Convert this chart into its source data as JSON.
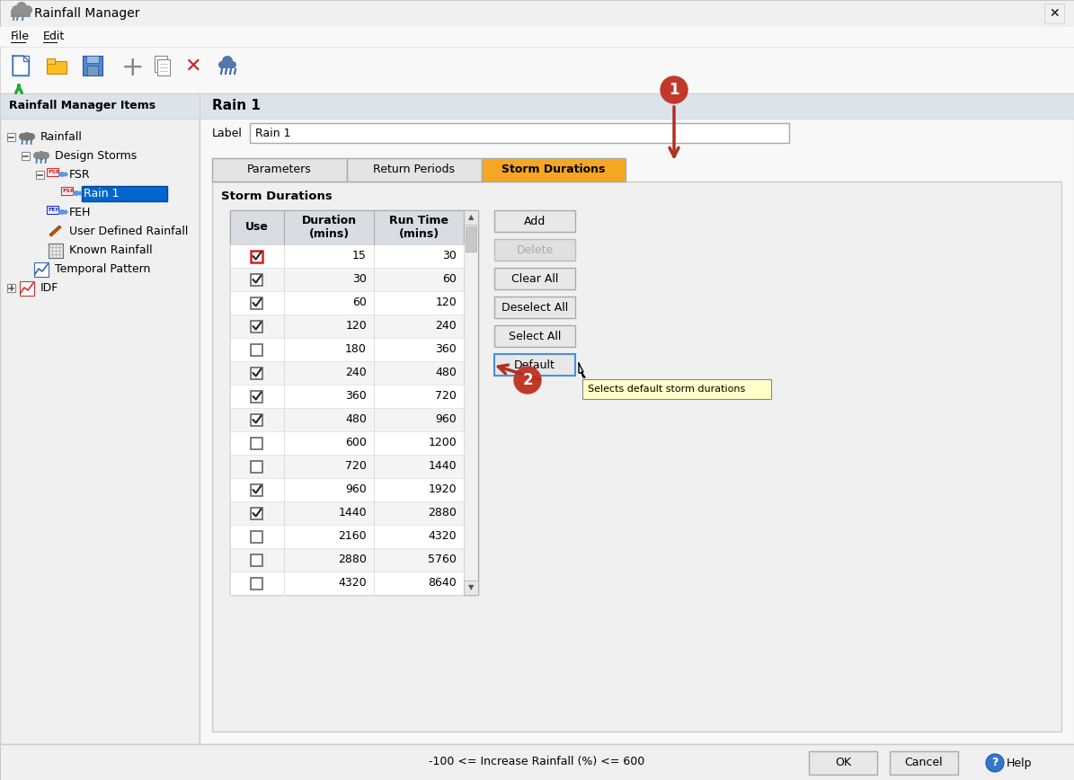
{
  "title": "Rainfall Manager",
  "window_bg": "#f0f0f0",
  "left_panel_title": "Rainfall Manager Items",
  "right_panel_title": "Rain 1",
  "label_text": "Rain 1",
  "tabs": [
    "Parameters",
    "Return Periods",
    "Storm Durations"
  ],
  "active_tab": 2,
  "active_tab_color": "#f5a623",
  "section_title": "Storm Durations",
  "table_headers": [
    "Use",
    "Duration\n(mins)",
    "Run Time\n(mins)"
  ],
  "table_data": [
    {
      "checked": true,
      "duration": 15,
      "runtime": 30,
      "first_row": true
    },
    {
      "checked": true,
      "duration": 30,
      "runtime": 60
    },
    {
      "checked": true,
      "duration": 60,
      "runtime": 120
    },
    {
      "checked": true,
      "duration": 120,
      "runtime": 240
    },
    {
      "checked": false,
      "duration": 180,
      "runtime": 360
    },
    {
      "checked": true,
      "duration": 240,
      "runtime": 480
    },
    {
      "checked": true,
      "duration": 360,
      "runtime": 720
    },
    {
      "checked": true,
      "duration": 480,
      "runtime": 960
    },
    {
      "checked": false,
      "duration": 600,
      "runtime": 1200
    },
    {
      "checked": false,
      "duration": 720,
      "runtime": 1440
    },
    {
      "checked": true,
      "duration": 960,
      "runtime": 1920
    },
    {
      "checked": true,
      "duration": 1440,
      "runtime": 2880
    },
    {
      "checked": false,
      "duration": 2160,
      "runtime": 4320
    },
    {
      "checked": false,
      "duration": 2880,
      "runtime": 5760
    },
    {
      "checked": false,
      "duration": 4320,
      "runtime": 8640
    }
  ],
  "buttons": [
    "Add",
    "Delete",
    "Clear All",
    "Deselect All",
    "Select All",
    "Default"
  ],
  "button_disabled": [
    false,
    true,
    false,
    false,
    false,
    false
  ],
  "tooltip_text": "Selects default storm durations",
  "bottom_text": "-100 <= Increase Rainfall (%) <= 600",
  "ok_cancel_buttons": [
    "OK",
    "Cancel"
  ],
  "arrow_color": "#b03020",
  "annot_bg": "#c0392b",
  "annot_fg": "#ffffff",
  "checkbox_border_normal": "#666666",
  "checkbox_border_first": "#cc2222",
  "check_color": "#222222",
  "tab_inactive_bg": "#e4e4e4",
  "panel_header_bg": "#dde3ea",
  "content_bg": "#f0f0f0",
  "table_header_bg": "#d8dde4",
  "row_bg_even": "#ffffff",
  "row_bg_odd": "#f4f4f4",
  "btn_normal_bg": "#e8e8e8",
  "btn_disabled_bg": "#e0e0e0",
  "btn_default_bg": "#e8e8e8",
  "btn_default_ec": "#4a90d9",
  "tooltip_bg": "#ffffc8",
  "scrollbar_bg": "#f0f0f0",
  "scrollbar_thumb": "#c8c8c8",
  "left_panel_bg": "#f0f0f0",
  "right_panel_bg": "#f8f8f8",
  "window_border": "#888888",
  "selected_item_bg": "#0066cc",
  "selected_item_fg": "#ffffff"
}
